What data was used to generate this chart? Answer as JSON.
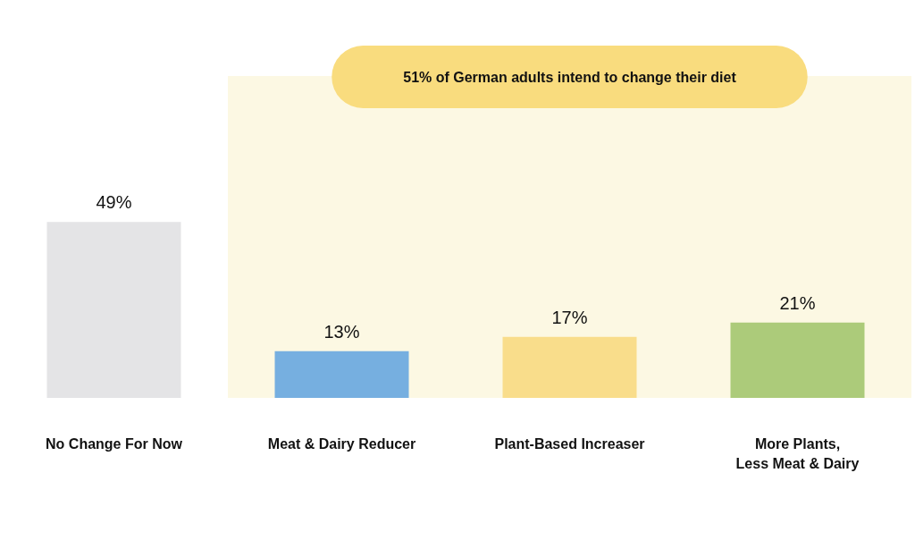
{
  "chart_data": {
    "type": "bar",
    "categories": [
      "No Change For Now",
      "Meat & Dairy Reducer",
      "Plant-Based Increaser",
      "More Plants,\nLess Meat & Dairy"
    ],
    "values": [
      49,
      13,
      17,
      21
    ],
    "colors": [
      "#e4e4e6",
      "#76afe0",
      "#f9dd8b",
      "#accb7a"
    ],
    "value_labels": [
      "49%",
      "13%",
      "17%",
      "21%"
    ],
    "bands": [
      {
        "axis": "x",
        "from": "Meat & Dairy Reducer",
        "to": "More Plants,\nLess Meat & Dairy",
        "label": "51% of German adults intend to change their diet",
        "color": "#fcf8e3"
      }
    ]
  }
}
